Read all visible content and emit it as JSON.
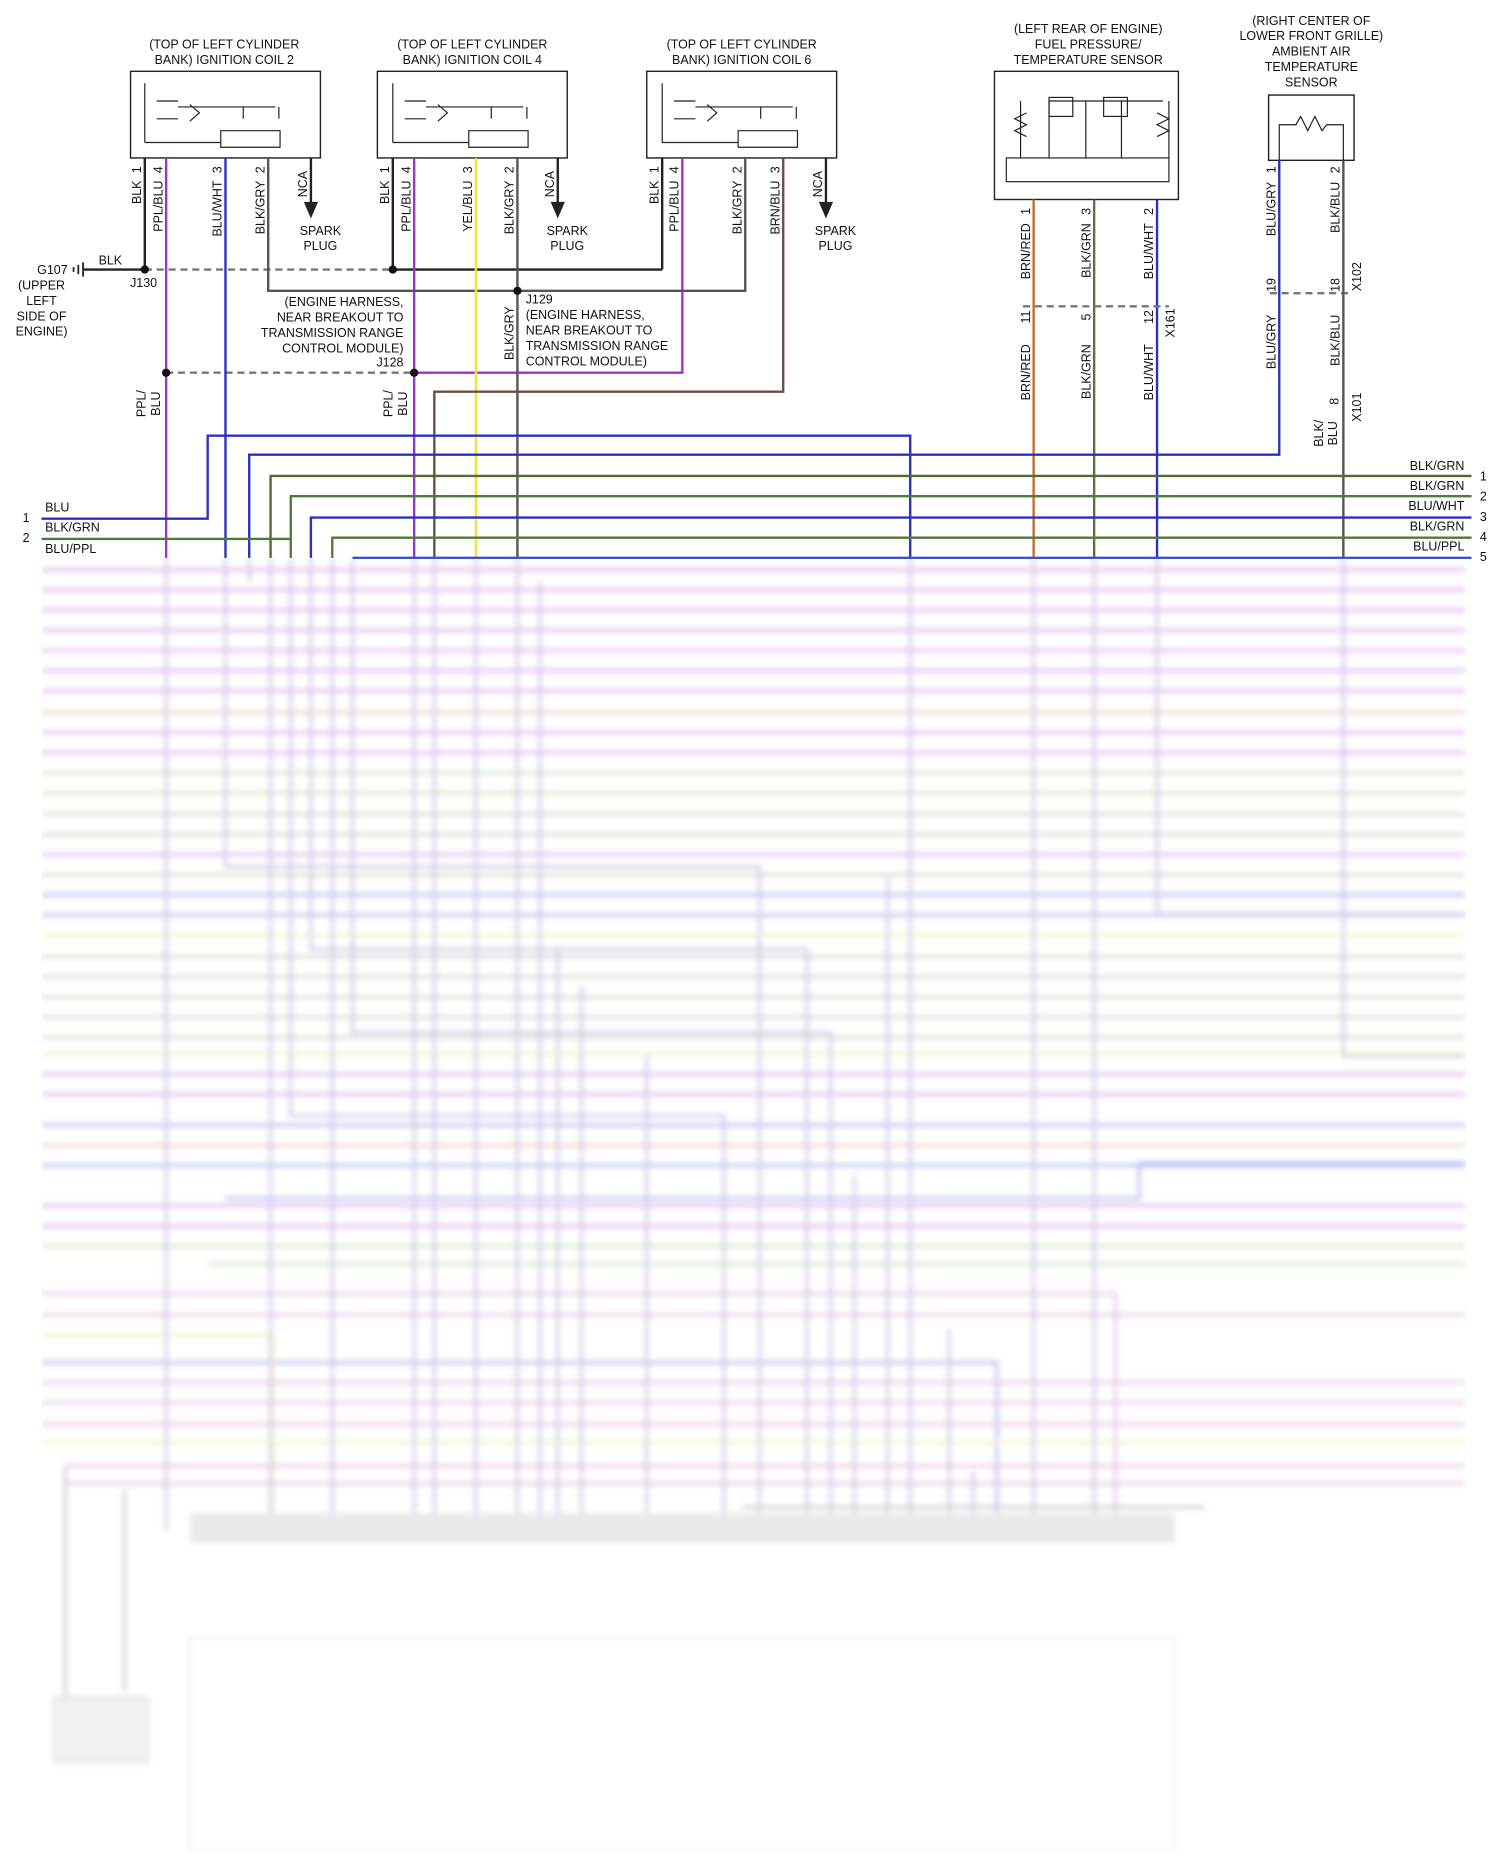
{
  "ground": {
    "name": "G107",
    "location": [
      "(UPPER",
      "LEFT",
      "SIDE OF",
      "ENGINE)"
    ],
    "wire": "BLK"
  },
  "coils": [
    {
      "title": [
        "(TOP OF LEFT CYLINDER",
        "BANK) IGNITION COIL 2"
      ],
      "pins": [
        {
          "wire": "BLK",
          "pin": "1"
        },
        {
          "wire": "PPL/BLU",
          "pin": "4"
        },
        {
          "wire": "BLU/WHT",
          "pin": "3"
        },
        {
          "wire": "BLK/GRY",
          "pin": "2"
        }
      ],
      "nca": "NCA",
      "load": [
        "SPARK",
        "PLUG"
      ]
    },
    {
      "title": [
        "(TOP OF LEFT CYLINDER",
        "BANK) IGNITION COIL 4"
      ],
      "pins": [
        {
          "wire": "BLK",
          "pin": "1"
        },
        {
          "wire": "PPL/BLU",
          "pin": "4"
        },
        {
          "wire": "YEL/BLU",
          "pin": "3"
        },
        {
          "wire": "BLK/GRY",
          "pin": "2"
        }
      ],
      "nca": "NCA",
      "load": [
        "SPARK",
        "PLUG"
      ]
    },
    {
      "title": [
        "(TOP OF LEFT CYLINDER",
        "BANK) IGNITION COIL 6"
      ],
      "pins": [
        {
          "wire": "BLK",
          "pin": "1"
        },
        {
          "wire": "PPL/BLU",
          "pin": "4"
        },
        {
          "wire": "BLK/GRY",
          "pin": "2"
        },
        {
          "wire": "BRN/BLU",
          "pin": "3"
        }
      ],
      "nca": "NCA",
      "load": [
        "SPARK",
        "PLUG"
      ]
    }
  ],
  "splices": {
    "j130": "J130",
    "j129": {
      "name": "J129",
      "note": [
        "(ENGINE HARNESS,",
        "NEAR BREAKOUT TO",
        "TRANSMISSION RANGE",
        "CONTROL MODULE)"
      ],
      "wire": "BLK/GRY"
    },
    "j128": {
      "name": "J128",
      "note": [
        "(ENGINE HARNESS,",
        "NEAR BREAKOUT TO",
        "TRANSMISSION RANGE",
        "CONTROL MODULE)"
      ],
      "wire_left": [
        "PPL/",
        "BLU"
      ],
      "wire_right": [
        "PPL/",
        "BLU"
      ]
    }
  },
  "fuel_sensor": {
    "title": [
      "(LEFT REAR OF ENGINE)",
      "FUEL PRESSURE/",
      "TEMPERATURE SENSOR"
    ],
    "pins": [
      {
        "wire": "BRN/RED",
        "pin": "1"
      },
      {
        "wire": "BLK/GRN",
        "pin": "3"
      },
      {
        "wire": "BLU/WHT",
        "pin": "2"
      }
    ],
    "connector": "X161",
    "connector_pins": [
      "11",
      "5",
      "12"
    ],
    "harness_wires": [
      "BRN/RED",
      "BLK/GRN",
      "BLU/WHT"
    ]
  },
  "ambient_sensor": {
    "title": [
      "(RIGHT CENTER OF",
      "LOWER FRONT GRILLE)",
      "AMBIENT AIR",
      "TEMPERATURE",
      "SENSOR"
    ],
    "pins": [
      {
        "wire": "BLU/GRY",
        "pin": "1"
      },
      {
        "wire": "BLK/BLU",
        "pin": "2"
      }
    ],
    "connector": "X102",
    "connector_pins": [
      "19",
      "18"
    ],
    "harness_wires": [
      "BLU/GRY",
      "BLK/BLU"
    ],
    "connector2": "X101",
    "connector2_pin": "8",
    "harness_wire2": [
      "BLK/",
      "BLU"
    ]
  },
  "left_connector": [
    {
      "pin": "1",
      "wire": "BLU"
    },
    {
      "pin": "2",
      "wire": "BLK/GRN"
    },
    {
      "wire": "BLU/PPL"
    }
  ],
  "right_connector": [
    {
      "wire": "BLK/GRN",
      "pin": "1"
    },
    {
      "wire": "BLK/GRN",
      "pin": "2"
    },
    {
      "wire": "BLU/WHT",
      "pin": "3"
    },
    {
      "wire": "BLK/GRN",
      "pin": "4"
    },
    {
      "wire": "BLU/PPL",
      "pin": "5"
    }
  ]
}
